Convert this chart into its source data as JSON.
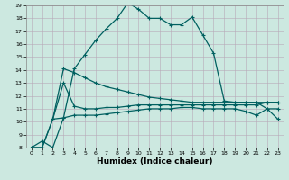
{
  "xlabel": "Humidex (Indice chaleur)",
  "xlim": [
    -0.5,
    23.5
  ],
  "ylim": [
    8,
    19
  ],
  "xticks": [
    0,
    1,
    2,
    3,
    4,
    5,
    6,
    7,
    8,
    9,
    10,
    11,
    12,
    13,
    14,
    15,
    16,
    17,
    18,
    19,
    20,
    21,
    22,
    23
  ],
  "yticks": [
    8,
    9,
    10,
    11,
    12,
    13,
    14,
    15,
    16,
    17,
    18,
    19
  ],
  "bg_color": "#cce8e0",
  "grid_color": "#b8a8b8",
  "line_color": "#006060",
  "line1_x": [
    0,
    1,
    2,
    3,
    4,
    5,
    6,
    7,
    8,
    9,
    10,
    11,
    12,
    13,
    14,
    15,
    16,
    17,
    18,
    19,
    20,
    21,
    22,
    23
  ],
  "line1_y": [
    8.0,
    8.5,
    8.0,
    10.3,
    14.1,
    15.2,
    16.3,
    17.2,
    18.0,
    19.2,
    18.7,
    18.0,
    18.0,
    17.5,
    17.5,
    18.1,
    16.7,
    15.3,
    11.6,
    11.5,
    11.5,
    11.5,
    11.0,
    11.0
  ],
  "line2_x": [
    0,
    1,
    2,
    3,
    4,
    5,
    6,
    7,
    8,
    9,
    10,
    11,
    12,
    13,
    14,
    15,
    16,
    17,
    18,
    19,
    20,
    21,
    22,
    23
  ],
  "line2_y": [
    8.0,
    8.0,
    10.2,
    14.1,
    13.8,
    13.4,
    13.0,
    12.7,
    12.5,
    12.3,
    12.1,
    11.9,
    11.8,
    11.7,
    11.6,
    11.5,
    11.5,
    11.5,
    11.5,
    11.5,
    11.5,
    11.5,
    11.5,
    11.5
  ],
  "line3_x": [
    2,
    3,
    4,
    5,
    6,
    7,
    8,
    9,
    10,
    11,
    12,
    13,
    14,
    15,
    16,
    17,
    18,
    19,
    20,
    21,
    22,
    23
  ],
  "line3_y": [
    10.2,
    13.0,
    11.2,
    11.0,
    11.0,
    11.1,
    11.1,
    11.2,
    11.3,
    11.3,
    11.3,
    11.3,
    11.3,
    11.3,
    11.3,
    11.3,
    11.3,
    11.3,
    11.3,
    11.3,
    11.5,
    11.5
  ],
  "line4_x": [
    0,
    1,
    2,
    3,
    4,
    5,
    6,
    7,
    8,
    9,
    10,
    11,
    12,
    13,
    14,
    15,
    16,
    17,
    18,
    19,
    20,
    21,
    22,
    23
  ],
  "line4_y": [
    8.0,
    8.0,
    10.2,
    10.3,
    10.5,
    10.5,
    10.5,
    10.6,
    10.7,
    10.8,
    10.9,
    11.0,
    11.0,
    11.0,
    11.1,
    11.1,
    11.0,
    11.0,
    11.0,
    11.0,
    10.8,
    10.5,
    11.0,
    10.2
  ],
  "lw": 0.9,
  "ms": 2.5
}
